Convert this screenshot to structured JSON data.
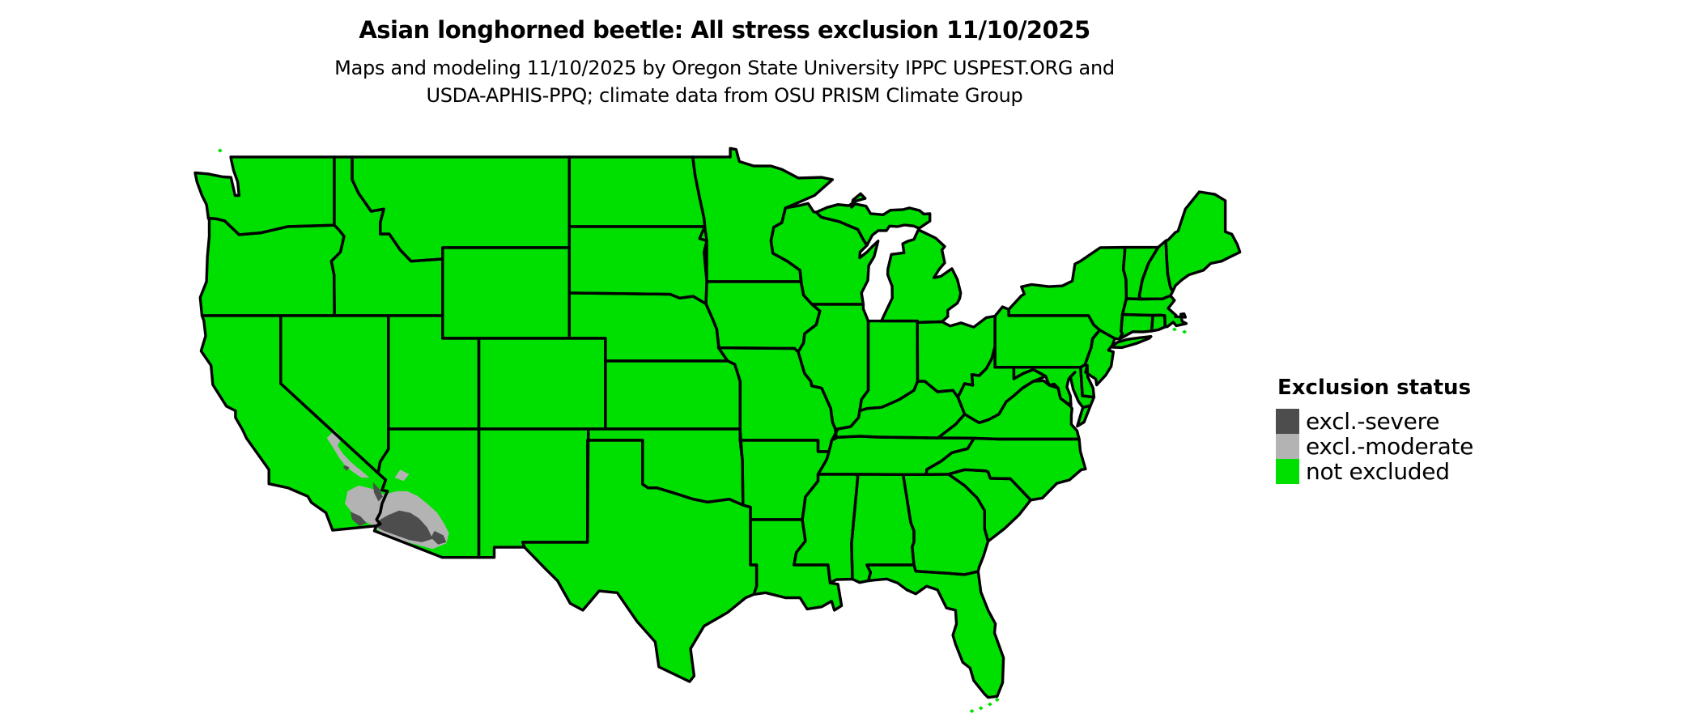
{
  "title": "Asian longhorned beetle: All stress exclusion 11/10/2025",
  "subtitle_line1": "Maps and modeling 11/10/2025 by Oregon State University IPPC USPEST.ORG and",
  "subtitle_line2": "USDA-APHIS-PPQ; climate data from OSU PRISM Climate Group",
  "legend": {
    "title": "Exclusion status",
    "items": [
      {
        "id": "severe",
        "label": "excl.-severe",
        "color": "#4d4d4d"
      },
      {
        "id": "moderate",
        "label": "excl.-moderate",
        "color": "#b3b3b3"
      },
      {
        "id": "none",
        "label": "not excluded",
        "color": "#00e000"
      }
    ]
  },
  "map": {
    "region": "Continental United States with state boundaries",
    "base_status": "not excluded",
    "excluded_regions": "excl.-moderate band across southwestern Arizona, southeastern California and southern Nevada deserts with excl.-severe core around the Yuma-Phoenix-Tucson and Imperial Valley areas",
    "land_color": "#00e000",
    "border_color": "#000000",
    "water_color": "#ffffff"
  }
}
